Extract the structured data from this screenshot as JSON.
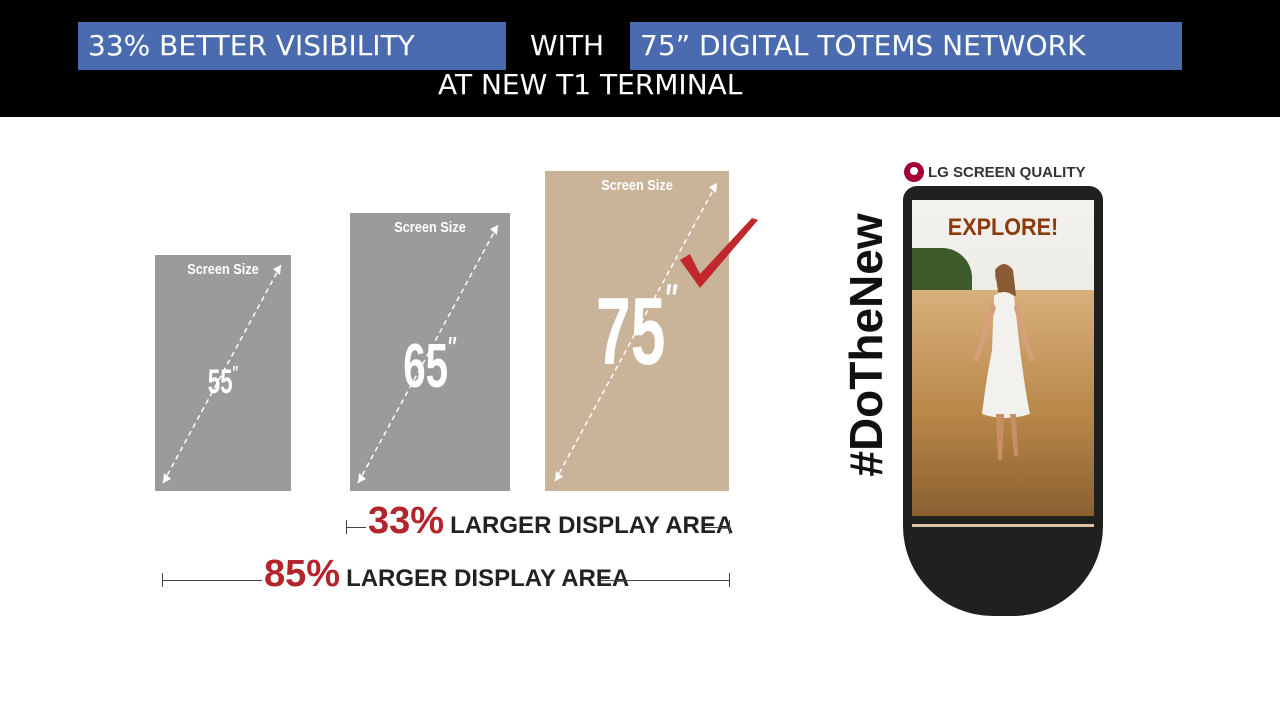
{
  "header": {
    "left_pill": "33% BETTER VISIBILITY",
    "connector": "WITH",
    "right_pill": "75” DIGITAL TOTEMS NETWORK",
    "subline": "AT NEW T1 TERMINAL"
  },
  "screens": [
    {
      "label": "Screen Size",
      "size": "55",
      "unit": "″",
      "color": "#9b9b9b"
    },
    {
      "label": "Screen Size",
      "size": "65",
      "unit": "″",
      "color": "#9b9b9b"
    },
    {
      "label": "Screen Size",
      "size": "75",
      "unit": "″",
      "color": "#c9b49a"
    }
  ],
  "comparisons": [
    {
      "percent": "33%",
      "label": "LARGER DISPLAY AREA"
    },
    {
      "percent": "85%",
      "label": "LARGER DISPLAY AREA"
    }
  ],
  "totem": {
    "brand": "LG SCREEN QUALITY",
    "screen_text": "EXPLORE!",
    "hashtag": "#DoTheNew"
  },
  "colors": {
    "header_bg": "#000000",
    "pill": "#4a6bb0",
    "accent_red": "#b3242b",
    "lg_red": "#a50034"
  },
  "icons": [
    "checkmark-icon",
    "lg-logo-icon",
    "diagonal-arrow-icon"
  ]
}
